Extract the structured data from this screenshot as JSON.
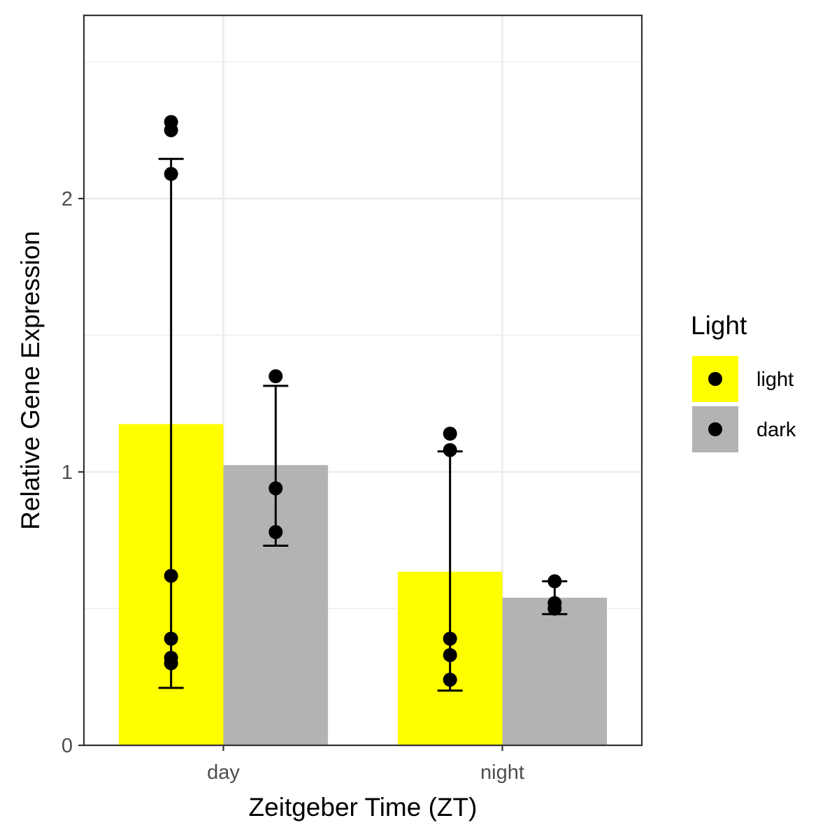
{
  "chart_data": {
    "type": "bar",
    "title": "",
    "xlabel": "Zeitgeber Time (ZT)",
    "ylabel": "Relative Gene Expression",
    "categories": [
      "day",
      "night"
    ],
    "ylim": [
      0,
      2.67
    ],
    "yticks": [
      0,
      1,
      2
    ],
    "ytick_labels": [
      "0",
      "1",
      "2"
    ],
    "grid": true,
    "legend": {
      "title": "Light",
      "placement": "right"
    },
    "series": [
      {
        "name": "light",
        "color": "#ffff00",
        "values": [
          1.175,
          0.635
        ],
        "error_low": [
          0.21,
          0.2
        ],
        "error_high": [
          2.145,
          1.075
        ],
        "points": [
          [
            2.28,
            2.25,
            2.09,
            0.62,
            0.39,
            0.32,
            0.3
          ],
          [
            1.14,
            1.08,
            0.39,
            0.33,
            0.24
          ]
        ]
      },
      {
        "name": "dark",
        "color": "#b3b3b3",
        "values": [
          1.025,
          0.54
        ],
        "error_low": [
          0.73,
          0.48
        ],
        "error_high": [
          1.315,
          0.6
        ],
        "points": [
          [
            1.35,
            0.94,
            0.78
          ],
          [
            0.6,
            0.52,
            0.5
          ]
        ]
      }
    ]
  }
}
